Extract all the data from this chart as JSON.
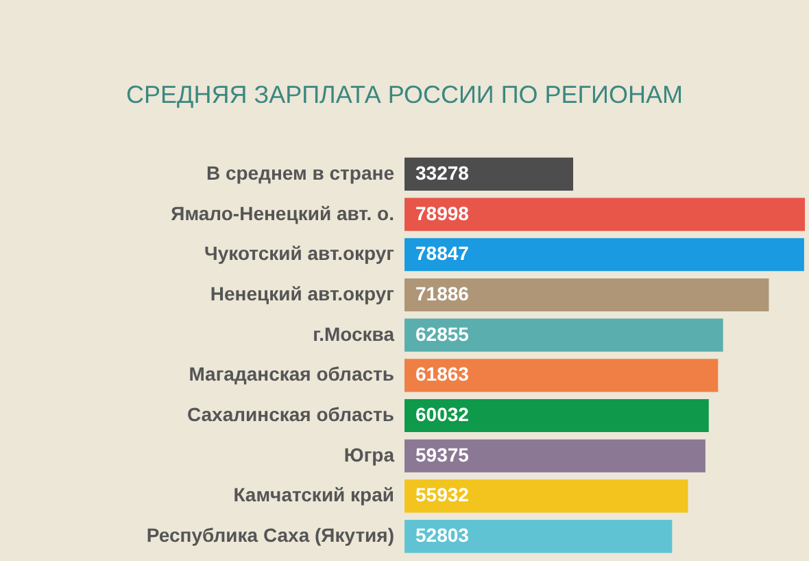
{
  "chart_data": {
    "type": "bar",
    "orientation": "horizontal",
    "title": "СРЕДНЯЯ ЗАРПЛАТА РОССИИ ПО РЕГИОНАМ",
    "categories": [
      "В среднем в стране",
      "Ямало-Ненецкий авт. о.",
      "Чукотский авт.округ",
      "Ненецкий авт.округ",
      "г.Москва",
      "Магаданская область",
      "Сахалинская область",
      "Югра",
      "Камчатский край",
      "Республика Саха (Якутия)"
    ],
    "values": [
      33278,
      78998,
      78847,
      71886,
      62855,
      61863,
      60032,
      59375,
      55932,
      52803
    ],
    "colors": [
      "#4d4d4d",
      "#e8564a",
      "#1a9ae0",
      "#ae9677",
      "#5aafae",
      "#f07f45",
      "#0e9a4a",
      "#8b7895",
      "#f2c41d",
      "#5fc3d3"
    ],
    "data_labels": true
  }
}
